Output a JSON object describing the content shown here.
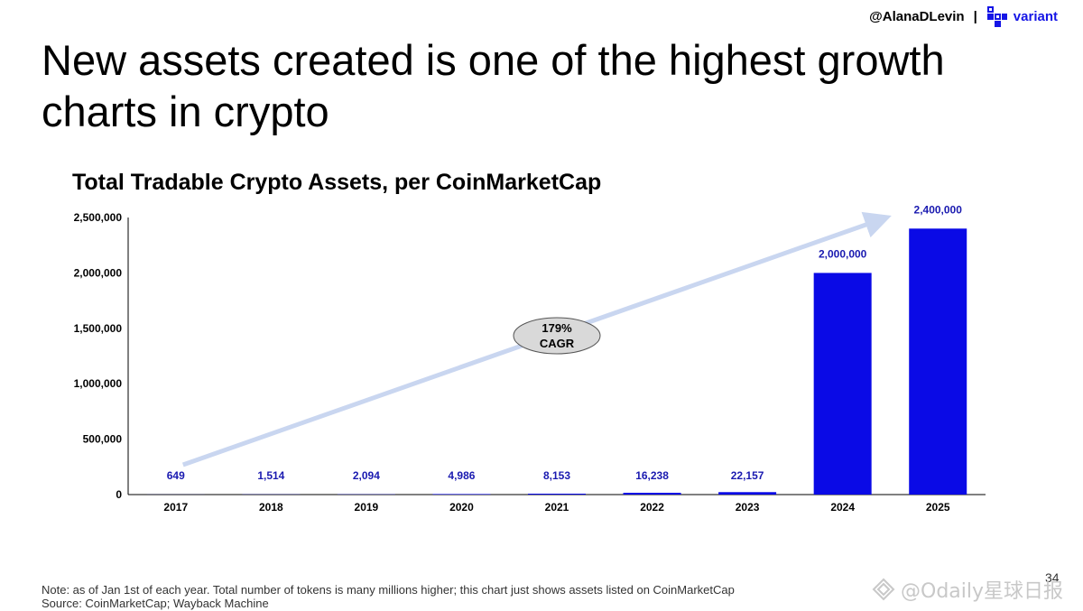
{
  "header": {
    "handle": "@AlanaDLevin",
    "separator": "|",
    "brand_name": "variant",
    "brand_icon": "variant-logo-icon",
    "brand_color": "#1515e6"
  },
  "slide": {
    "title": "New assets created is one of the highest growth charts in crypto",
    "page_number": "34"
  },
  "footnote": {
    "note": "Note: as of Jan 1st of each year. Total number of tokens is many millions higher; this chart just shows assets listed on CoinMarketCap",
    "source": "Source: CoinMarketCap; Wayback Machine"
  },
  "watermark": {
    "text": "@Odaily星球日报",
    "icon": "odaily-logo-icon"
  },
  "chart_data": {
    "type": "bar",
    "title": "Total Tradable Crypto Assets, per CoinMarketCap",
    "categories": [
      "2017",
      "2018",
      "2019",
      "2020",
      "2021",
      "2022",
      "2023",
      "2024",
      "2025"
    ],
    "values": [
      649,
      1514,
      2094,
      4986,
      8153,
      16238,
      22157,
      2000000,
      2400000
    ],
    "value_labels": [
      "649",
      "1,514",
      "2,094",
      "4,986",
      "8,153",
      "16,238",
      "22,157",
      "2,000,000",
      "2,400,000"
    ],
    "ylim": [
      0,
      2500000
    ],
    "yticks": [
      0,
      500000,
      1000000,
      1500000,
      2000000,
      2500000
    ],
    "ytick_labels": [
      "0",
      "500,000",
      "1,000,000",
      "1,500,000",
      "2,000,000",
      "2,500,000"
    ],
    "xlabel": "",
    "ylabel": "",
    "grid": false,
    "bar_color": "#0a0ae6",
    "label_color": "#1a1ab0",
    "annotation": {
      "line1": "179%",
      "line2": "CAGR"
    },
    "trend_arrow_color": "#c9d6f0"
  }
}
